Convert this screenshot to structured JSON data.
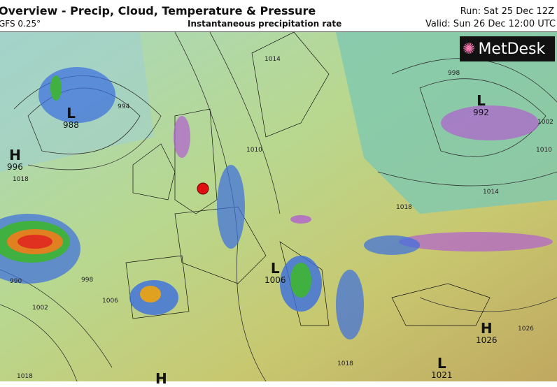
{
  "header": {
    "title": "Overview - Precip, Cloud, Temperature & Pressure",
    "model": "GFS 0.25°",
    "subtitle": "Instantaneous precipitation rate",
    "run": "Run: Sat 25 Dec 12Z",
    "valid": "Valid: Sun 26 Dec 12:00 UTC"
  },
  "logo": {
    "text": "MetDesk",
    "icon": "starburst-logo-icon"
  },
  "pressure_centres": [
    {
      "type": "L",
      "value": "988"
    },
    {
      "type": "H",
      "value": "996"
    },
    {
      "type": "L",
      "value": "992"
    },
    {
      "type": "L",
      "value": "1006"
    },
    {
      "type": "H",
      "value": "1026"
    },
    {
      "type": "L",
      "value": "1021"
    },
    {
      "type": "H",
      "value": ""
    }
  ],
  "isobar_labels": [
    "994",
    "1014",
    "1010",
    "998",
    "1002",
    "1010",
    "1014",
    "1018",
    "1018",
    "1006",
    "1002",
    "990",
    "998",
    "1026",
    "1018",
    "1018"
  ],
  "marker": {
    "color": "#e01010"
  },
  "colors": {
    "land": "#b8c97a",
    "sea": "#8fcfb0",
    "rain_light": "#3a6ee0",
    "rain_heavy": "#e03020",
    "snow": "#b060d0"
  }
}
